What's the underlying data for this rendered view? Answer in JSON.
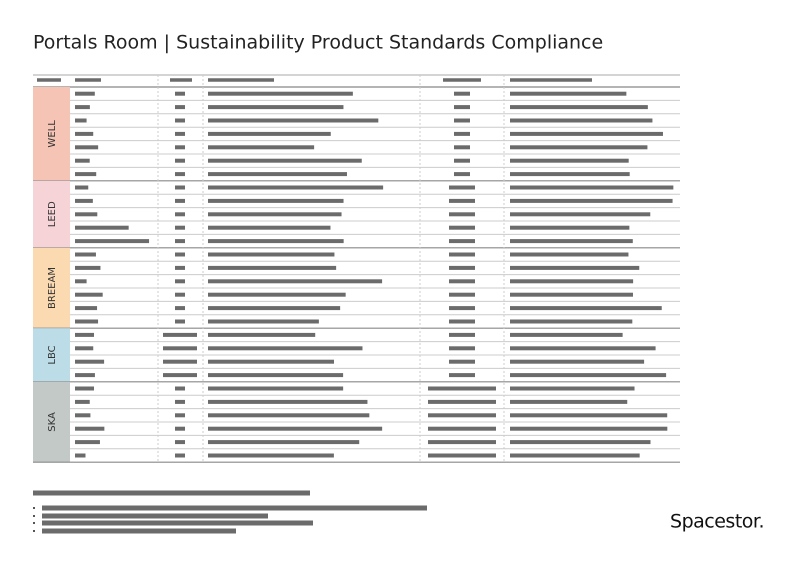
{
  "header": {
    "title": "Portals Room | Sustainability Product Standards Compliance"
  },
  "groups": [
    {
      "label": "WELL"
    },
    {
      "label": "LEED"
    },
    {
      "label": "BREEAM"
    },
    {
      "label": "LBC"
    },
    {
      "label": "SKA"
    }
  ],
  "logo": "Spacestor."
}
